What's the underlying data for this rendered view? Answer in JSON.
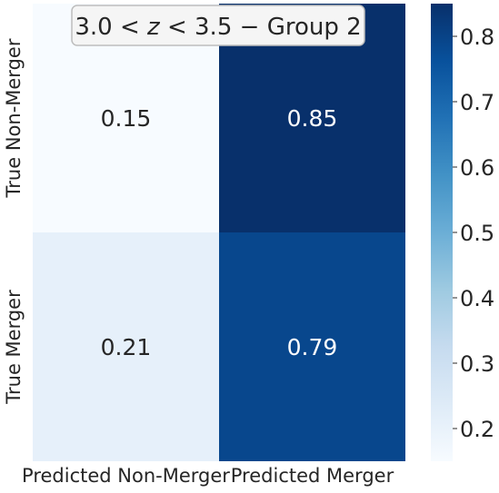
{
  "chart_data": {
    "type": "heatmap",
    "title": "3.0 < z < 3.5 − Group 2",
    "title_parts": {
      "lo": "3.0",
      "var": "z",
      "hi": "3.5",
      "suffix": "− Group 2"
    },
    "x_labels": [
      "Predicted Non-Merger",
      "Predicted Merger"
    ],
    "y_labels": [
      "True Non-Merger",
      "True Merger"
    ],
    "values": [
      [
        0.15,
        0.85
      ],
      [
        0.21,
        0.79
      ]
    ],
    "value_labels": [
      [
        "0.15",
        "0.85"
      ],
      [
        "0.21",
        "0.79"
      ]
    ],
    "colormap": "Blues",
    "vmin": 0.15,
    "vmax": 0.85,
    "colorbar_ticks": [
      0.2,
      0.3,
      0.4,
      0.5,
      0.6,
      0.7,
      0.8
    ],
    "colorbar_tick_labels": [
      "0.2",
      "0.3",
      "0.4",
      "0.5",
      "0.6",
      "0.7",
      "0.8"
    ]
  }
}
